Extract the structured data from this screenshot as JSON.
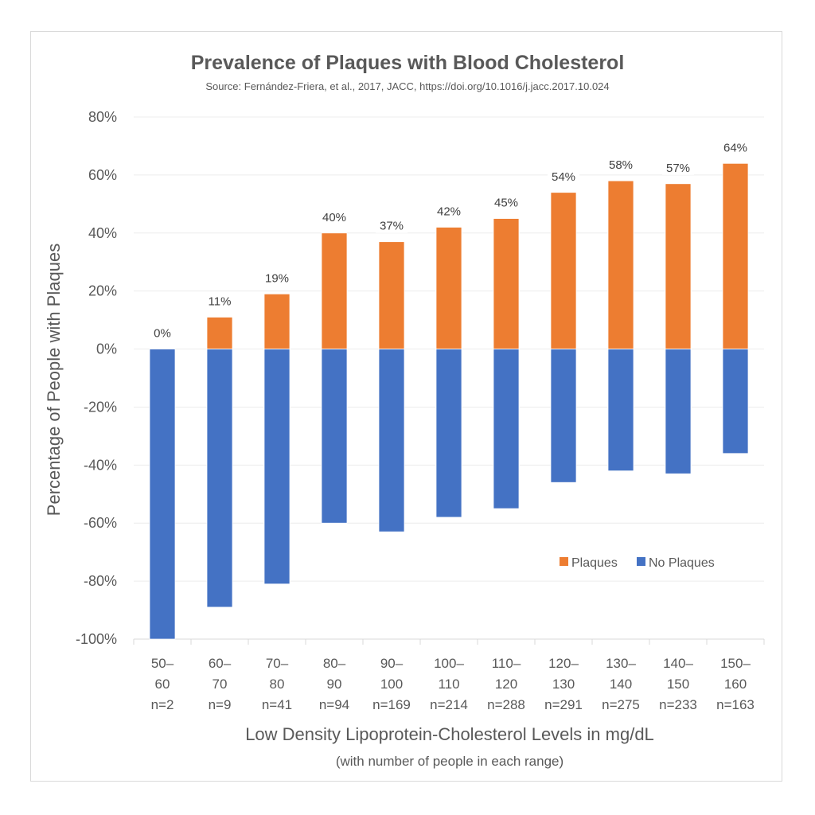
{
  "chart_data": {
    "type": "bar",
    "stacked": true,
    "title": "Prevalence of Plaques with Blood Cholesterol",
    "subtitle": "Source: Fernández-Friera, et al., 2017, JACC, https://doi.org/10.1016/j.jacc.2017.10.024",
    "xlabel": "Low Density Lipoprotein-Cholesterol Levels in mg/dL",
    "xlabel_sub": "(with number of people in each range)",
    "ylabel": "Percentage of People with Plaques",
    "ylim": [
      -100,
      80
    ],
    "yticks": [
      80,
      60,
      40,
      20,
      0,
      -20,
      -40,
      -60,
      -80,
      -100
    ],
    "ytick_labels": [
      "80%",
      "60%",
      "40%",
      "20%",
      "0%",
      "-20%",
      "-40%",
      "-60%",
      "-80%",
      "-100%"
    ],
    "grid": true,
    "legend_position": "bottom-right-inside",
    "categories": [
      {
        "range_top": "50–",
        "range_bottom": "60",
        "n": "n=2"
      },
      {
        "range_top": "60–",
        "range_bottom": "70",
        "n": "n=9"
      },
      {
        "range_top": "70–",
        "range_bottom": "80",
        "n": "n=41"
      },
      {
        "range_top": "80–",
        "range_bottom": "90",
        "n": "n=94"
      },
      {
        "range_top": "90–",
        "range_bottom": "100",
        "n": "n=169"
      },
      {
        "range_top": "100–",
        "range_bottom": "110",
        "n": "n=214"
      },
      {
        "range_top": "110–",
        "range_bottom": "120",
        "n": "n=288"
      },
      {
        "range_top": "120–",
        "range_bottom": "130",
        "n": "n=291"
      },
      {
        "range_top": "130–",
        "range_bottom": "140",
        "n": "n=275"
      },
      {
        "range_top": "140–",
        "range_bottom": "150",
        "n": "n=233"
      },
      {
        "range_top": "150–",
        "range_bottom": "160",
        "n": "n=163"
      }
    ],
    "series": [
      {
        "name": "Plaques",
        "color": "#ed7d31",
        "values": [
          0,
          11,
          19,
          40,
          37,
          42,
          45,
          54,
          58,
          57,
          64
        ],
        "data_labels": [
          "0%",
          "11%",
          "19%",
          "40%",
          "37%",
          "42%",
          "45%",
          "54%",
          "58%",
          "57%",
          "64%"
        ]
      },
      {
        "name": "No Plaques",
        "color": "#4472c4",
        "values": [
          -100,
          -89,
          -81,
          -60,
          -63,
          -58,
          -55,
          -46,
          -42,
          -43,
          -36
        ]
      }
    ]
  }
}
